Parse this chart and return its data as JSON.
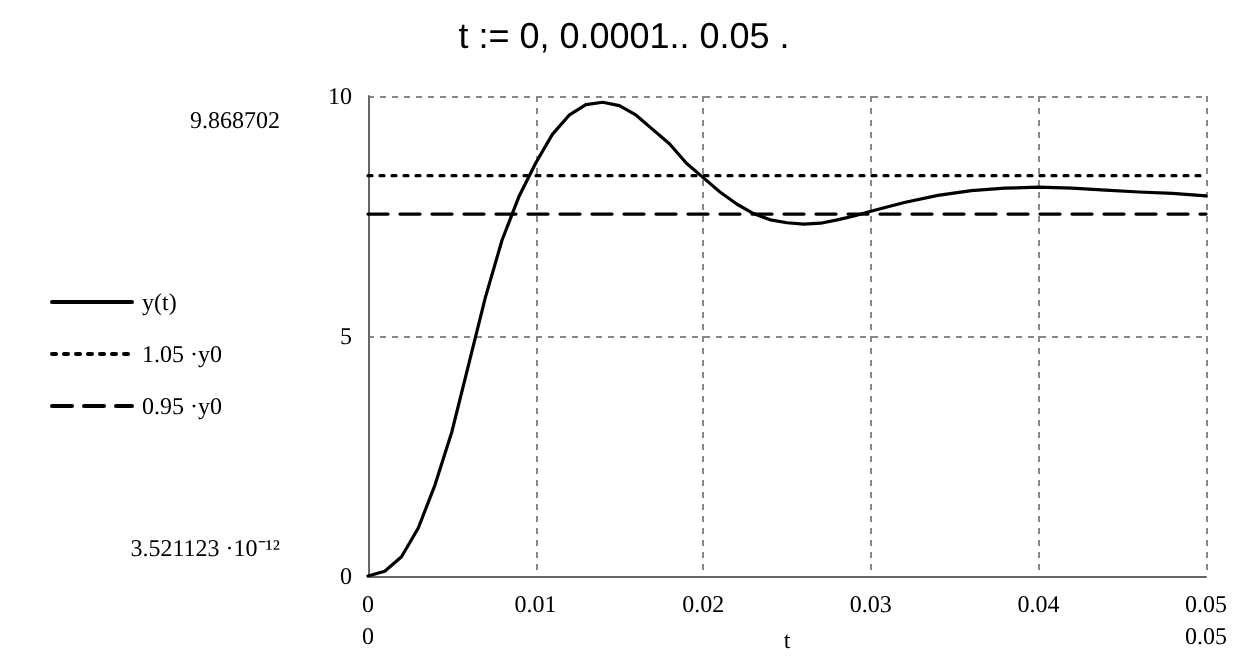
{
  "chart_data": {
    "type": "line",
    "title": "t := 0, 0.0001.. 0.05 .",
    "xlabel": "t",
    "xlim": [
      0,
      0.05
    ],
    "xticks": [
      0,
      0.01,
      0.02,
      0.03,
      0.04,
      0.05
    ],
    "ylim": [
      0,
      10
    ],
    "yticks": [
      0,
      5,
      10
    ],
    "grid": true,
    "legend": "left",
    "marker": "none",
    "annotations": [
      "9.868702",
      "3.521123 ·10⁻¹²",
      "0",
      "0.05"
    ],
    "series": [
      {
        "name": "y(t)",
        "color": "#000000",
        "line_style": "solid",
        "x": [
          0,
          0.001,
          0.002,
          0.003,
          0.004,
          0.005,
          0.006,
          0.007,
          0.008,
          0.009,
          0.01,
          0.011,
          0.012,
          0.013,
          0.014,
          0.015,
          0.016,
          0.017,
          0.018,
          0.019,
          0.02,
          0.021,
          0.022,
          0.023,
          0.024,
          0.025,
          0.026,
          0.027,
          0.028,
          0.029,
          0.03,
          0.032,
          0.034,
          0.036,
          0.038,
          0.04,
          0.042,
          0.044,
          0.046,
          0.048,
          0.05
        ],
        "values": [
          0,
          0.1,
          0.4,
          1.0,
          1.9,
          3.0,
          4.4,
          5.8,
          7.0,
          7.9,
          8.6,
          9.2,
          9.6,
          9.82,
          9.87,
          9.8,
          9.6,
          9.3,
          9.0,
          8.6,
          8.3,
          8.0,
          7.75,
          7.55,
          7.42,
          7.36,
          7.33,
          7.35,
          7.42,
          7.5,
          7.6,
          7.78,
          7.93,
          8.03,
          8.08,
          8.1,
          8.08,
          8.04,
          8.0,
          7.97,
          7.92
        ]
      },
      {
        "name": "1.05 ·y0",
        "color": "#000000",
        "line_style": "dotted",
        "x": [
          0,
          0.05
        ],
        "values": [
          8.34,
          8.34
        ]
      },
      {
        "name": "0.95 ·y0",
        "color": "#000000",
        "line_style": "dashed",
        "x": [
          0,
          0.05
        ],
        "values": [
          7.54,
          7.54
        ]
      }
    ]
  }
}
